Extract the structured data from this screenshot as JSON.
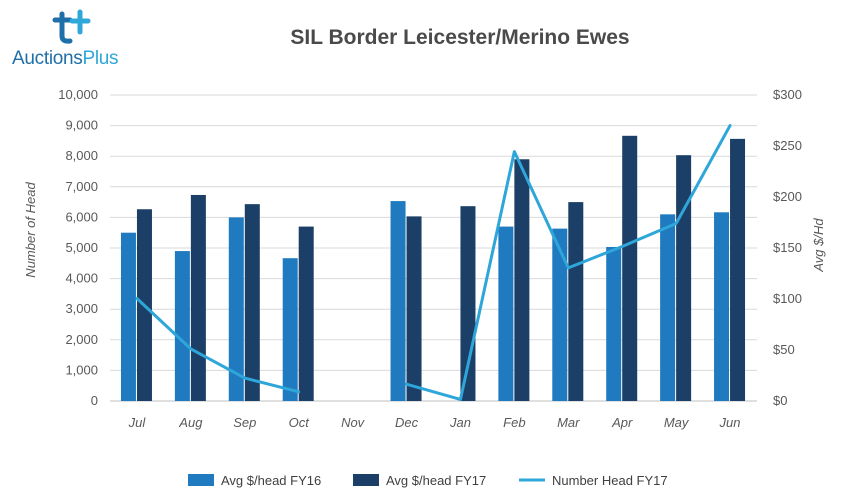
{
  "logo": {
    "text_main": "Auctions",
    "text_accent": "Plus"
  },
  "chart_data": {
    "type": "bar",
    "title": "SIL Border Leicester/Merino Ewes",
    "categories": [
      "Jul",
      "Aug",
      "Sep",
      "Oct",
      "Nov",
      "Dec",
      "Jan",
      "Feb",
      "Mar",
      "Apr",
      "May",
      "Jun"
    ],
    "y_left": {
      "label": "Number of Head",
      "range": [
        0,
        10000
      ],
      "ticks": [
        "0",
        "1,000",
        "2,000",
        "3,000",
        "4,000",
        "5,000",
        "6,000",
        "7,000",
        "8,000",
        "9,000",
        "10,000"
      ]
    },
    "y_right": {
      "label": "Avg $/Hd",
      "range": [
        0,
        300
      ],
      "ticks": [
        "$0",
        "$50",
        "$100",
        "$150",
        "$200",
        "$250",
        "$300"
      ]
    },
    "grid": true,
    "legend_position": "bottom",
    "series": [
      {
        "name": "Avg $/head FY16",
        "type": "bar",
        "axis": "right",
        "color": "#1f7ac0",
        "values": [
          165,
          147,
          180,
          140,
          null,
          196,
          null,
          171,
          169,
          151,
          183,
          185
        ]
      },
      {
        "name": "Avg $/head FY17",
        "type": "bar",
        "axis": "right",
        "color": "#1b3f66",
        "values": [
          188,
          202,
          193,
          171,
          null,
          181,
          191,
          237,
          195,
          260,
          241,
          257
        ]
      },
      {
        "name": "Number Head FY17",
        "type": "line",
        "axis": "left",
        "color": "#2ea6d9",
        "values": [
          3350,
          1700,
          750,
          300,
          null,
          550,
          50,
          8150,
          4350,
          5050,
          5800,
          9000
        ]
      }
    ]
  }
}
